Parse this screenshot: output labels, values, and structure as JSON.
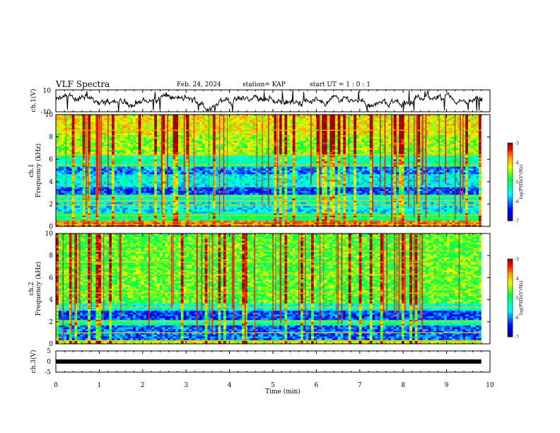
{
  "header": {
    "title": "VLF Spectra",
    "date": "Feb. 24, 2024",
    "station": "station= KAP",
    "start_ut": "start UT =  1 : 0  : 1"
  },
  "chart_data": [
    {
      "type": "line",
      "name": "ch1-waveform",
      "ylabel": "ch.1(V)",
      "ylim": [
        -10,
        10
      ],
      "yticks": [
        "10",
        "-10"
      ],
      "xlim": [
        0,
        10
      ],
      "line_color": "#000000",
      "note": "dense noisy waveform roughly between -8 and 9 V"
    },
    {
      "type": "heatmap",
      "name": "ch1-spectrogram",
      "ylabel_line1": "ch.1",
      "ylabel_line2": "Frequency (kHz)",
      "ylim": [
        0,
        10
      ],
      "xlim": [
        0,
        9.8
      ],
      "yticks": [
        "0",
        "2",
        "4",
        "6",
        "8",
        "10"
      ],
      "colorbar": {
        "label": "log(PSD)(V²/Hz)",
        "ticks": [
          "-3",
          "-4",
          "-5",
          "-6",
          "-7"
        ],
        "range": [
          -7,
          -3
        ]
      },
      "bands": [
        {
          "from": 0,
          "to": 0.5,
          "level": -3.5
        },
        {
          "from": 0.5,
          "to": 1.1,
          "level": -5.0
        },
        {
          "from": 1.1,
          "to": 2.2,
          "level": -5.6
        },
        {
          "from": 2.2,
          "to": 2.9,
          "level": -5.3
        },
        {
          "from": 2.9,
          "to": 3.5,
          "level": -6.2
        },
        {
          "from": 3.5,
          "to": 4.7,
          "level": -5.5
        },
        {
          "from": 4.7,
          "to": 5.4,
          "level": -6.0
        },
        {
          "from": 5.4,
          "to": 6.4,
          "level": -5.2
        },
        {
          "from": 6.4,
          "to": 8.2,
          "level": -4.4
        },
        {
          "from": 8.2,
          "to": 10,
          "level": -4.1
        }
      ],
      "lines_khz": [
        0.2,
        0.4,
        1.0,
        1.9,
        2.3,
        2.7,
        5.5,
        6.4,
        8.6
      ]
    },
    {
      "type": "heatmap",
      "name": "ch2-spectrogram",
      "ylabel_line1": "ch.2",
      "ylabel_line2": "Frequency (kHz)",
      "ylim": [
        0,
        10
      ],
      "xlim": [
        0,
        9.8
      ],
      "yticks": [
        "0",
        "2",
        "4",
        "6",
        "8",
        "10"
      ],
      "colorbar": {
        "label": "log(PSD)(V²/Hz)",
        "ticks": [
          "-3",
          "-4",
          "-5",
          "-6",
          "-7"
        ],
        "range": [
          -7,
          -3
        ]
      },
      "bands": [
        {
          "from": 0,
          "to": 0.4,
          "level": -4.2
        },
        {
          "from": 0.4,
          "to": 1.7,
          "level": -6.1
        },
        {
          "from": 1.7,
          "to": 2.1,
          "level": -5.2
        },
        {
          "from": 2.1,
          "to": 3.0,
          "level": -6.2
        },
        {
          "from": 3.0,
          "to": 3.6,
          "level": -5.4
        },
        {
          "from": 3.6,
          "to": 10,
          "level": -4.6
        }
      ],
      "lines_khz": [
        0.3,
        1.0,
        2.0,
        3.3,
        4.6,
        6.3,
        7.4,
        8.4
      ]
    },
    {
      "type": "line",
      "name": "ch3-waveform",
      "ylabel": "ch.3(V)",
      "ylim": [
        -5,
        5
      ],
      "yticks": [
        "5",
        "0",
        "-5"
      ],
      "xlim": [
        0,
        9.8
      ],
      "level": 0,
      "line_color": "#000000"
    }
  ],
  "x_axis": {
    "label": "Time (min)",
    "ticks": [
      "0",
      "1",
      "2",
      "3",
      "4",
      "5",
      "6",
      "7",
      "8",
      "9",
      "10"
    ],
    "xlim": [
      0,
      10
    ]
  },
  "colors": {
    "frame": "#000000",
    "spectrogram_burst": "#e02010"
  }
}
